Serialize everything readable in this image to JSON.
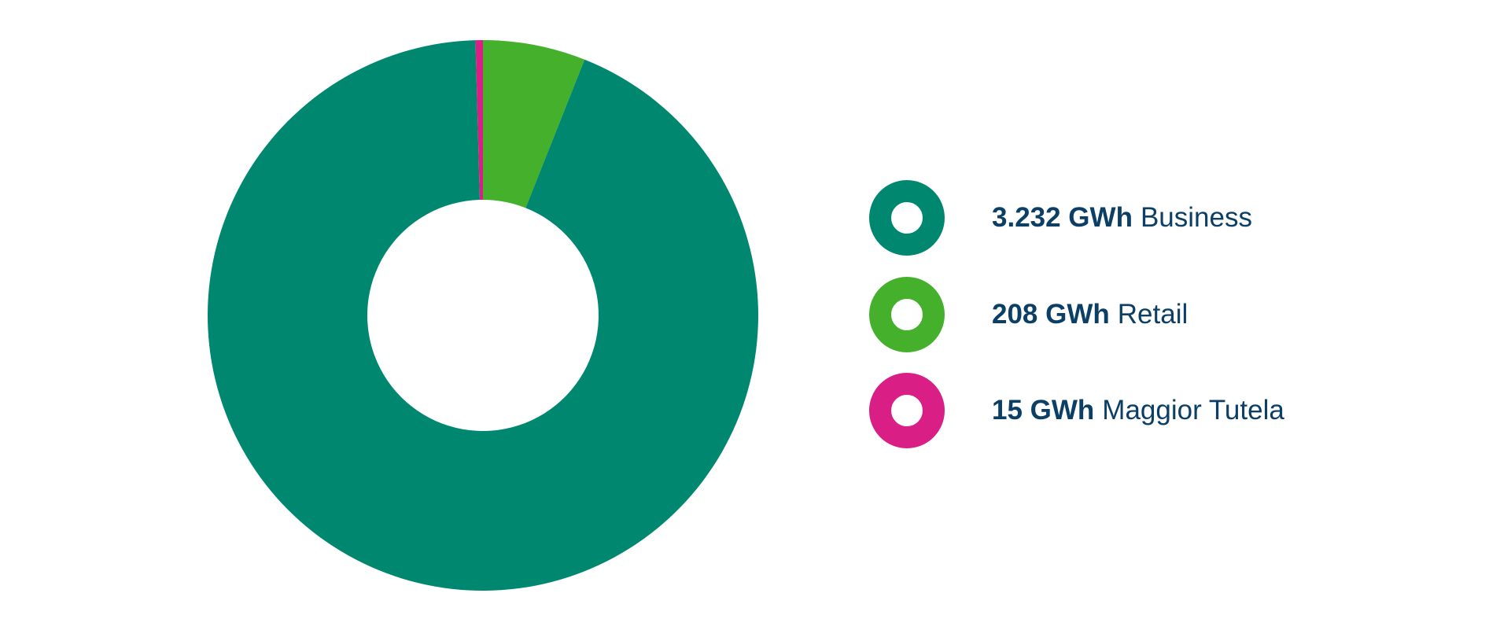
{
  "chart_data": {
    "type": "pie",
    "variant": "donut",
    "start": "top, clockwise",
    "categories": [
      "Retail",
      "Business",
      "Maggior Tutela"
    ],
    "values": [
      208,
      3232,
      15
    ],
    "unit": "GWh",
    "colors": [
      "#45b02b",
      "#00876f",
      "#d91f85"
    ],
    "legend": {
      "placement": "right",
      "entries": [
        {
          "value": "3.232 GWh",
          "label": "Business",
          "color": "#00876f"
        },
        {
          "value": "208 GWh",
          "label": "Retail",
          "color": "#45b02b"
        },
        {
          "value": "15 GWh",
          "label": "Maggior Tutela",
          "color": "#d91f85"
        }
      ]
    }
  }
}
